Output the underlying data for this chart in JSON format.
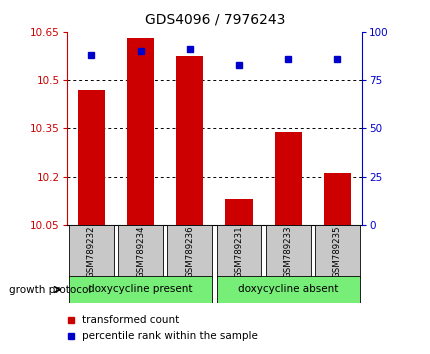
{
  "title": "GDS4096 / 7976243",
  "samples": [
    "GSM789232",
    "GSM789234",
    "GSM789236",
    "GSM789231",
    "GSM789233",
    "GSM789235"
  ],
  "bar_values": [
    10.47,
    10.63,
    10.575,
    10.13,
    10.34,
    10.21
  ],
  "percentile_values": [
    88,
    90,
    91,
    83,
    86,
    86
  ],
  "y_min": 10.05,
  "y_max": 10.65,
  "y_ticks": [
    10.05,
    10.2,
    10.35,
    10.5,
    10.65
  ],
  "y_right_ticks": [
    0,
    25,
    50,
    75,
    100
  ],
  "bar_color": "#cc0000",
  "dot_color": "#0000cc",
  "group1_label": "doxycycline present",
  "group2_label": "doxycycline absent",
  "group1_indices": [
    0,
    1,
    2
  ],
  "group2_indices": [
    3,
    4,
    5
  ],
  "group_color": "#77ee77",
  "protocol_label": "growth protocol",
  "legend_bar_label": "transformed count",
  "legend_dot_label": "percentile rank within the sample",
  "tick_label_color_left": "#cc0000",
  "tick_label_color_right": "#0000cc",
  "bg_color": "#ffffff",
  "plot_bg_color": "#ffffff",
  "sample_bg_color": "#c8c8c8"
}
